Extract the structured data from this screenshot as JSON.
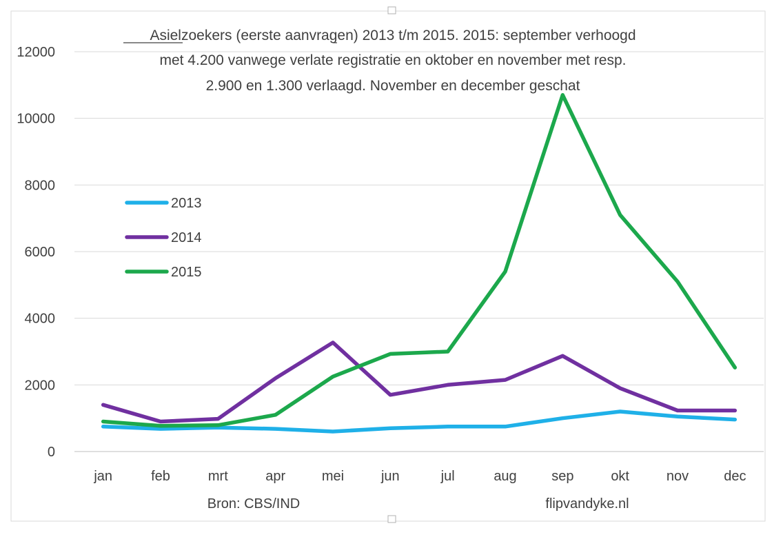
{
  "chart_data": {
    "type": "line",
    "title_lines": [
      "Asielzoekers (eerste aanvragen) 2013 t/m 2015.   2015: september verhoogd",
      "met 4.200 vanwege verlate registratie en oktober en november met resp.",
      "2.900 en 1.300 verlaagd. November en december geschat"
    ],
    "categories": [
      "jan",
      "feb",
      "mrt",
      "apr",
      "mei",
      "jun",
      "jul",
      "aug",
      "sep",
      "okt",
      "nov",
      "dec"
    ],
    "y_ticks": [
      0,
      2000,
      4000,
      6000,
      8000,
      10000,
      12000
    ],
    "ylim": [
      0,
      12000
    ],
    "grid": true,
    "legend_position": "left",
    "series": [
      {
        "name": "2013",
        "color": "#1fb0e8",
        "values": [
          750,
          680,
          720,
          680,
          600,
          700,
          750,
          750,
          1000,
          1200,
          1050,
          960
        ]
      },
      {
        "name": "2014",
        "color": "#7030a0",
        "values": [
          1400,
          900,
          980,
          2200,
          3270,
          1700,
          2000,
          2150,
          2870,
          1900,
          1230,
          1230
        ]
      },
      {
        "name": "2015",
        "color": "#1ca84c",
        "values": [
          900,
          770,
          790,
          1100,
          2250,
          2930,
          3000,
          5400,
          10700,
          7100,
          5100,
          2520
        ]
      }
    ],
    "footer_left": "Bron: CBS/IND",
    "footer_right": "flipvandyke.nl"
  }
}
